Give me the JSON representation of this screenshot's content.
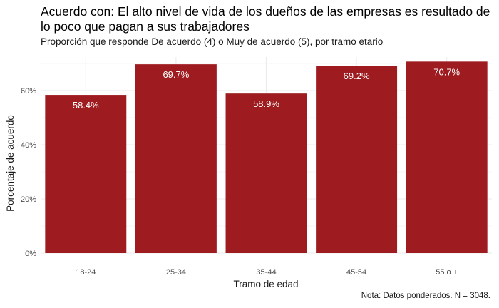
{
  "chart_data": {
    "type": "bar",
    "title": "Acuerdo con: El alto nivel de vida de los dueños de las empresas es resultado de lo poco que pagan a sus trabajadores",
    "subtitle": "Proporción que responde De acuerdo (4) o Muy de acuerdo (5), por tramo etario",
    "caption": "Nota: Datos ponderados. N = 3048.",
    "xlabel": "Tramo de edad",
    "ylabel": "Porcentaje de acuerdo",
    "categories": [
      "18-24",
      "25-34",
      "35-44",
      "45-54",
      "55 o +"
    ],
    "values": [
      58.4,
      69.7,
      58.9,
      69.2,
      70.7
    ],
    "value_labels": [
      "58.4%",
      "69.7%",
      "58.9%",
      "69.2%",
      "70.7%"
    ],
    "ylim": [
      0,
      72
    ],
    "yticks": [
      0,
      20,
      40,
      60
    ],
    "ytick_labels": [
      "0%",
      "20%",
      "40%",
      "60%"
    ],
    "grid": true,
    "bar_color": "#9E1B1F",
    "gridline_color": "#EBEBEB"
  }
}
